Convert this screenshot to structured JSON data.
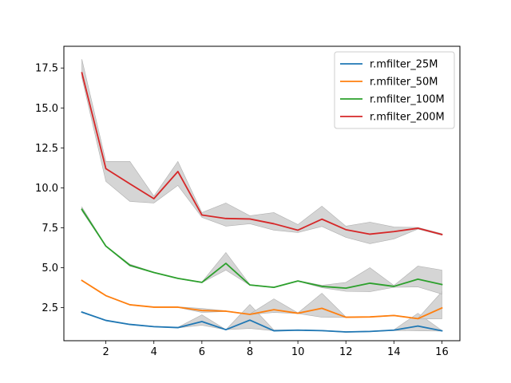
{
  "chart_data": {
    "type": "line",
    "title": "",
    "xlabel": "",
    "ylabel": "",
    "xlim": [
      0.25,
      16.75
    ],
    "ylim": [
      0.43,
      18.86
    ],
    "xticks": [
      2,
      4,
      6,
      8,
      10,
      12,
      14,
      16
    ],
    "xtick_labels": [
      "2",
      "4",
      "6",
      "8",
      "10",
      "12",
      "14",
      "16"
    ],
    "yticks": [
      2.5,
      5.0,
      7.5,
      10.0,
      12.5,
      15.0,
      17.5
    ],
    "ytick_labels": [
      "2.5",
      "5.0",
      "7.5",
      "10.0",
      "12.5",
      "15.0",
      "17.5"
    ],
    "grid": false,
    "legend_position": "top-right",
    "band_color": "#d3d3d3",
    "x": [
      1,
      2,
      3,
      4,
      5,
      6,
      7,
      8,
      9,
      10,
      11,
      12,
      13,
      14,
      15,
      16
    ],
    "series": [
      {
        "name": "r.mfilter_25M",
        "color": "#1f77b4",
        "values": [
          2.22,
          1.7,
          1.45,
          1.31,
          1.25,
          1.63,
          1.12,
          1.72,
          1.05,
          1.09,
          1.06,
          0.98,
          1.01,
          1.09,
          1.35,
          1.05
        ],
        "lower": [
          2.2,
          1.68,
          1.43,
          1.29,
          1.23,
          1.4,
          1.12,
          1.2,
          1.05,
          1.07,
          1.04,
          0.96,
          0.99,
          1.07,
          1.05,
          1.03
        ],
        "upper": [
          2.24,
          1.72,
          1.47,
          1.33,
          1.27,
          2.05,
          1.12,
          2.7,
          1.1,
          1.11,
          1.08,
          1.0,
          1.03,
          1.11,
          2.15,
          1.07
        ]
      },
      {
        "name": "r.mfilter_50M",
        "color": "#ff7f0e",
        "values": [
          4.2,
          3.25,
          2.68,
          2.53,
          2.53,
          2.32,
          2.28,
          2.08,
          2.37,
          2.15,
          2.46,
          1.9,
          1.92,
          2.01,
          1.81,
          2.48
        ],
        "lower": [
          4.18,
          3.23,
          2.66,
          2.51,
          2.51,
          2.2,
          2.26,
          2.06,
          2.2,
          2.13,
          1.9,
          1.88,
          1.9,
          1.99,
          1.79,
          1.8
        ],
        "upper": [
          4.22,
          3.27,
          2.7,
          2.55,
          2.55,
          2.45,
          2.3,
          2.1,
          3.05,
          2.17,
          3.4,
          1.92,
          1.94,
          2.03,
          1.83,
          3.5
        ]
      },
      {
        "name": "r.mfilter_100M",
        "color": "#2ca02c",
        "values": [
          8.65,
          6.35,
          5.15,
          4.7,
          4.33,
          4.08,
          5.27,
          3.92,
          3.77,
          4.17,
          3.83,
          3.72,
          4.03,
          3.83,
          4.28,
          3.95
        ],
        "lower": [
          8.55,
          6.33,
          5.1,
          4.68,
          4.31,
          4.06,
          4.85,
          3.9,
          3.75,
          4.15,
          3.75,
          3.52,
          3.5,
          3.77,
          3.8,
          3.35
        ],
        "upper": [
          8.8,
          6.37,
          5.22,
          4.72,
          4.35,
          4.1,
          5.95,
          3.94,
          3.79,
          4.19,
          3.9,
          4.08,
          5.0,
          3.89,
          5.1,
          4.85
        ]
      },
      {
        "name": "r.mfilter_200M",
        "color": "#d62728",
        "values": [
          17.2,
          11.2,
          10.25,
          9.32,
          11.02,
          8.3,
          8.08,
          8.05,
          7.75,
          7.35,
          8.04,
          7.38,
          7.1,
          7.26,
          7.47,
          7.08
        ],
        "lower": [
          16.9,
          10.4,
          9.15,
          9.05,
          10.15,
          8.15,
          7.6,
          7.75,
          7.35,
          7.2,
          7.58,
          6.9,
          6.5,
          6.8,
          7.42,
          7.03
        ],
        "upper": [
          18.05,
          11.65,
          11.65,
          9.48,
          11.65,
          8.45,
          9.05,
          8.25,
          8.45,
          7.7,
          8.85,
          7.6,
          7.85,
          7.55,
          7.52,
          7.13
        ]
      }
    ]
  }
}
